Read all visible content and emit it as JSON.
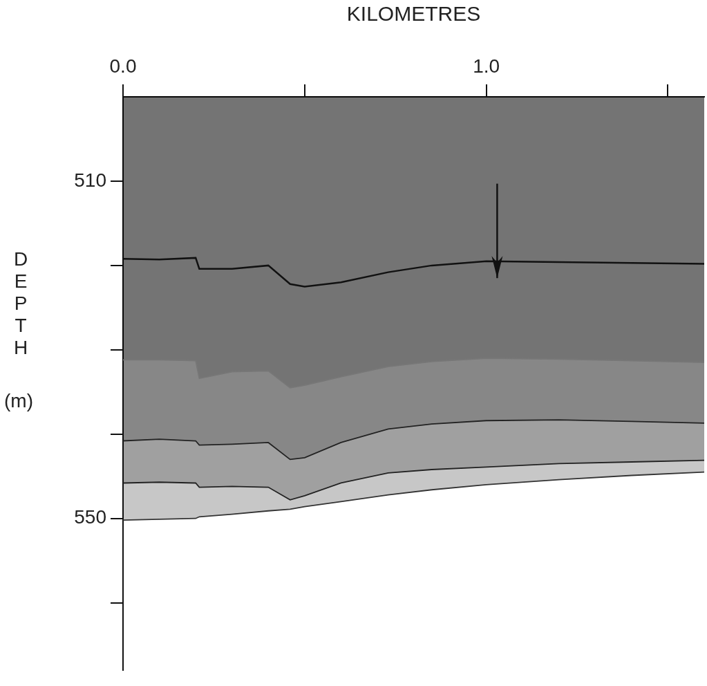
{
  "chart_data": {
    "type": "line",
    "x_label": "KILOMETRES",
    "y_label": "DEPTH (m)",
    "xlim": [
      0,
      1.6
    ],
    "xticks": [
      {
        "value": 0,
        "label": "0.0"
      },
      {
        "value": 0.5,
        "label": null
      },
      {
        "value": 1,
        "label": "1.0"
      },
      {
        "value": 1.5,
        "label": null
      }
    ],
    "ylim": [
      568,
      500
    ],
    "yticks": [
      510,
      {
        "value": 520,
        "label": null
      },
      {
        "value": 530,
        "label": null
      },
      {
        "value": 540,
        "label": null
      },
      550,
      {
        "value": 560,
        "label": null
      }
    ],
    "grid": false,
    "x": [
      0,
      0.1,
      0.2,
      0.21,
      0.3,
      0.4,
      0.46,
      0.5,
      0.6,
      0.73,
      0.85,
      1.0,
      1.2,
      1.4,
      1.6
    ],
    "series": [
      {
        "color": "#111111",
        "values": [
          519.2,
          519.3,
          519.1,
          520.4,
          520.4,
          520.0,
          522.2,
          522.5,
          522.0,
          520.8,
          520.0,
          519.5,
          519.6,
          519.7,
          519.8
        ]
      },
      {
        "color": "#777777",
        "values": [
          531.2,
          531.2,
          531.3,
          533.4,
          532.6,
          532.5,
          534.5,
          534.2,
          533.2,
          532.0,
          531.4,
          531.0,
          531.1,
          531.3,
          531.5
        ]
      },
      {
        "color": "#222222",
        "values": [
          540.8,
          540.6,
          540.8,
          541.3,
          541.2,
          541.0,
          543.0,
          542.8,
          541.0,
          539.4,
          538.8,
          538.4,
          538.3,
          538.5,
          538.7
        ]
      },
      {
        "color": "#222222",
        "values": [
          545.8,
          545.7,
          545.8,
          546.3,
          546.2,
          546.3,
          547.8,
          547.3,
          545.8,
          544.6,
          544.2,
          543.9,
          543.5,
          543.3,
          543.1
        ]
      },
      {
        "color": "#333333",
        "values": [
          550.2,
          550.1,
          550.0,
          549.8,
          549.5,
          549.1,
          548.9,
          548.6,
          548.0,
          547.2,
          546.6,
          546.0,
          545.4,
          544.9,
          544.5
        ]
      }
    ],
    "annotations": [
      {
        "type": "arrow",
        "x": 1.03,
        "y": [
          510.3,
          521.5
        ]
      }
    ]
  }
}
